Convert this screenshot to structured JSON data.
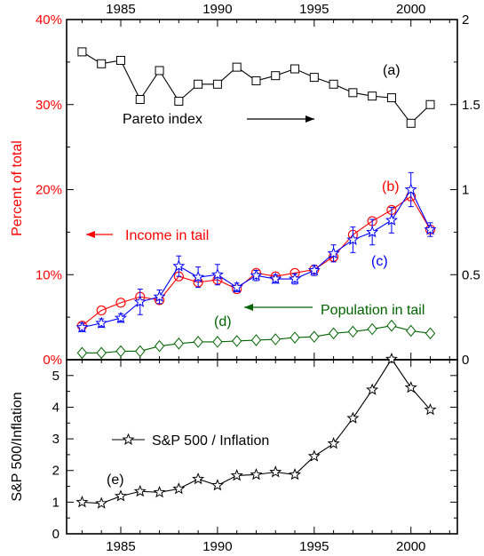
{
  "colors": {
    "income": "#ff0000",
    "income_axis": "#ff0000",
    "population": "#006400",
    "pareto": "#000000",
    "sp500": "#000000",
    "sim": "#0000ff"
  },
  "chart_data": [
    {
      "type": "line",
      "panel": "top",
      "xlim": [
        1982.2,
        2002.4
      ],
      "x_ticks_major": [
        1985,
        1990,
        1995,
        2000
      ],
      "x_tick_labels": [
        "1985",
        "1990",
        "1995",
        "2000"
      ],
      "ylabel": "Percent of total",
      "ylim": [
        0,
        40
      ],
      "y_ticks": [
        0,
        10,
        20,
        30,
        40
      ],
      "y_tick_labels": [
        "0%",
        "10%",
        "20%",
        "30%",
        "40%"
      ],
      "ylim_right": [
        0,
        2
      ],
      "y_ticks_right": [
        0,
        0.5,
        1,
        1.5,
        2
      ],
      "y_tick_labels_right": [
        "0",
        "0.5",
        "1",
        "1.5",
        "2"
      ],
      "grid": false,
      "x": [
        1983,
        1984,
        1985,
        1986,
        1987,
        1988,
        1989,
        1990,
        1991,
        1992,
        1993,
        1994,
        1995,
        1996,
        1997,
        1998,
        1999,
        2000,
        2001
      ],
      "series": [
        {
          "key": "pareto",
          "label_letter": "(a)",
          "axis": "right",
          "marker": "square",
          "values": [
            1.81,
            1.74,
            1.76,
            1.53,
            1.7,
            1.52,
            1.62,
            1.62,
            1.72,
            1.64,
            1.67,
            1.71,
            1.66,
            1.62,
            1.57,
            1.55,
            1.54,
            1.39,
            1.5
          ]
        },
        {
          "key": "income",
          "label_letter": "(b)",
          "axis": "left",
          "marker": "circle",
          "values": [
            4.0,
            5.8,
            6.7,
            7.4,
            7.0,
            9.8,
            9.1,
            9.4,
            8.3,
            10.2,
            9.8,
            10.2,
            10.6,
            12.1,
            14.7,
            16.3,
            17.6,
            19.2,
            15.3
          ]
        },
        {
          "key": "sim",
          "label_letter": "(c)",
          "axis": "left",
          "marker": "star",
          "values": [
            3.8,
            4.3,
            4.9,
            6.8,
            7.4,
            11.0,
            9.7,
            10.0,
            8.5,
            9.9,
            9.5,
            9.5,
            10.5,
            12.5,
            14.1,
            15.0,
            16.4,
            20.0,
            15.3
          ],
          "errors": [
            0.5,
            0.5,
            0.5,
            1.5,
            0.8,
            1.2,
            1.2,
            1.2,
            0.5,
            0.6,
            0.5,
            0.6,
            0.6,
            1.0,
            1.5,
            1.5,
            1.5,
            2.0,
            0.8
          ]
        },
        {
          "key": "population",
          "label_letter": "(d)",
          "axis": "left",
          "marker": "diamond",
          "values": [
            0.8,
            0.8,
            1.0,
            1.0,
            1.6,
            1.9,
            2.1,
            2.1,
            2.2,
            2.3,
            2.4,
            2.6,
            2.7,
            3.1,
            3.3,
            3.6,
            4.0,
            3.4,
            3.1
          ]
        }
      ],
      "annotations": {
        "pareto": "Pareto index",
        "income": "Income in tail",
        "population": "Population in tail"
      }
    },
    {
      "type": "line",
      "panel": "bottom",
      "xlim": [
        1982.2,
        2002.4
      ],
      "x_ticks_major": [
        1985,
        1990,
        1995,
        2000
      ],
      "x_tick_labels": [
        "1985",
        "1990",
        "1995",
        "2000"
      ],
      "ylabel": "S&P 500/Inflation",
      "ylim": [
        0,
        5.5
      ],
      "y_ticks": [
        0,
        1,
        2,
        3,
        4,
        5
      ],
      "y_tick_labels": [
        "0",
        "1",
        "2",
        "3",
        "4",
        "5"
      ],
      "grid": false,
      "x": [
        1983,
        1984,
        1985,
        1986,
        1987,
        1988,
        1989,
        1990,
        1991,
        1992,
        1993,
        1994,
        1995,
        1996,
        1997,
        1998,
        1999,
        2000,
        2001
      ],
      "series": [
        {
          "key": "sp500",
          "label_letter": "(e)",
          "name": "S&P 500 / Inflation",
          "marker": "star",
          "values": [
            1.0,
            0.96,
            1.19,
            1.34,
            1.31,
            1.42,
            1.73,
            1.53,
            1.84,
            1.87,
            1.95,
            1.87,
            2.45,
            2.85,
            3.65,
            4.55,
            5.52,
            4.62,
            3.92
          ]
        }
      ],
      "legend": "S&P 500 / Inflation"
    }
  ]
}
